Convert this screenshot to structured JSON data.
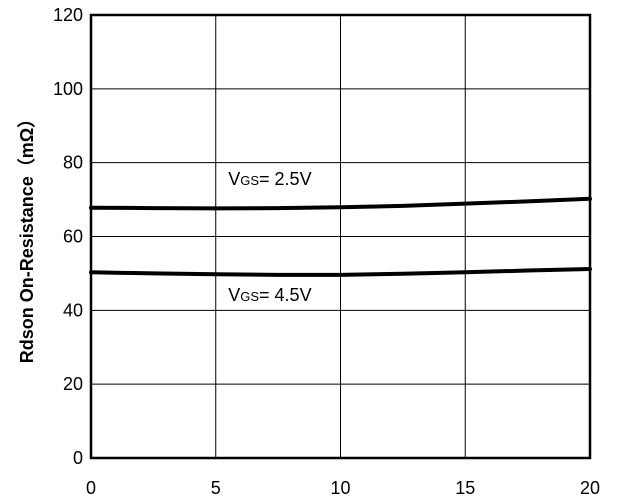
{
  "chart_data": {
    "type": "line",
    "title": "",
    "xlabel": "",
    "ylabel": "Rdson On-Resistance（mΩ）",
    "xlim": [
      0,
      20
    ],
    "ylim": [
      0,
      120
    ],
    "x_ticks": [
      "0",
      "5",
      "10",
      "15",
      "20"
    ],
    "y_ticks": [
      "0",
      "20",
      "40",
      "60",
      "80",
      "100",
      "120"
    ],
    "grid": true,
    "series": [
      {
        "x": [
          0,
          2.5,
          5,
          7.5,
          10,
          12.5,
          15,
          17.5,
          20
        ],
        "y": [
          67.8,
          67.7,
          67.6,
          67.7,
          67.9,
          68.3,
          68.9,
          69.5,
          70.2
        ]
      },
      {
        "x": [
          0,
          2.5,
          5,
          7.5,
          10,
          12.5,
          15,
          17.5,
          20
        ],
        "y": [
          50.3,
          50.0,
          49.8,
          49.6,
          49.6,
          49.9,
          50.3,
          50.8,
          51.2
        ]
      }
    ],
    "annotations": [
      {
        "main": "V",
        "sub": "GS",
        "rest": "= 2.5V",
        "x": 5.5,
        "y": 74
      },
      {
        "main": "V",
        "sub": "GS",
        "rest": "= 4.5V",
        "x": 5.5,
        "y": 42.5
      }
    ]
  }
}
